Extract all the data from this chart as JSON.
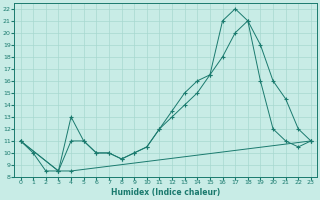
{
  "xlabel": "Humidex (Indice chaleur)",
  "xlim": [
    -0.5,
    23.5
  ],
  "ylim": [
    8,
    22.5
  ],
  "xticks": [
    0,
    1,
    2,
    3,
    4,
    5,
    6,
    7,
    8,
    9,
    10,
    11,
    12,
    13,
    14,
    15,
    16,
    17,
    18,
    19,
    20,
    21,
    22,
    23
  ],
  "yticks": [
    8,
    9,
    10,
    11,
    12,
    13,
    14,
    15,
    16,
    17,
    18,
    19,
    20,
    21,
    22
  ],
  "bg_color": "#c8ece6",
  "line_color": "#1a7a6e",
  "grid_color": "#a8d8d0",
  "lines": [
    {
      "x": [
        0,
        1,
        2,
        3,
        4,
        5,
        6,
        7,
        8,
        9,
        10,
        11,
        12,
        13,
        14,
        15,
        16,
        17,
        18,
        19,
        20,
        21,
        22,
        23
      ],
      "y": [
        11,
        10,
        8.5,
        8.5,
        11,
        11,
        10,
        10,
        9.5,
        10,
        10.5,
        12,
        13,
        14,
        15,
        16.5,
        18,
        20,
        21,
        19,
        16,
        14.5,
        12,
        11
      ]
    },
    {
      "x": [
        0,
        3,
        4,
        5,
        6,
        7,
        8,
        9,
        10,
        11,
        12,
        13,
        14,
        15,
        16,
        17,
        18,
        19,
        20,
        21,
        22,
        23
      ],
      "y": [
        11,
        8.5,
        13,
        11,
        10,
        10,
        9.5,
        10,
        10.5,
        12,
        13.5,
        15,
        16,
        16.5,
        21,
        22,
        21,
        16,
        12,
        11,
        10.5,
        11
      ]
    },
    {
      "x": [
        0,
        3,
        4,
        23
      ],
      "y": [
        11,
        8.5,
        8.5,
        11
      ]
    }
  ]
}
